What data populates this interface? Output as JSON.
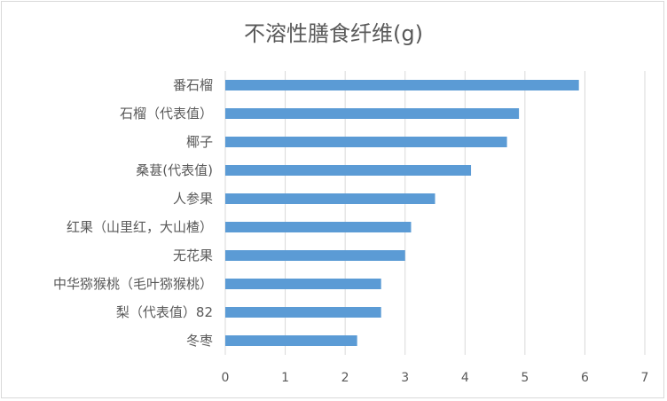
{
  "chart_data": {
    "type": "bar",
    "orientation": "horizontal",
    "title": "不溶性膳食纤维(g)",
    "categories": [
      "番石榴",
      "石榴（代表值）",
      "椰子",
      "桑葚(代表值)",
      "人参果",
      "红果（山里红，大山楂）",
      "无花果",
      "中华猕猴桃（毛叶猕猴桃）",
      "梨（代表值）82",
      "冬枣"
    ],
    "values": [
      5.9,
      4.9,
      4.7,
      4.1,
      3.5,
      3.1,
      3.0,
      2.6,
      2.6,
      2.2
    ],
    "xlim": [
      0,
      7
    ],
    "xticks": [
      "0",
      "1",
      "2",
      "3",
      "4",
      "5",
      "6",
      "7"
    ],
    "grid": true,
    "bar_color": "#5b9bd5",
    "grid_color": "#d9d9d9"
  }
}
